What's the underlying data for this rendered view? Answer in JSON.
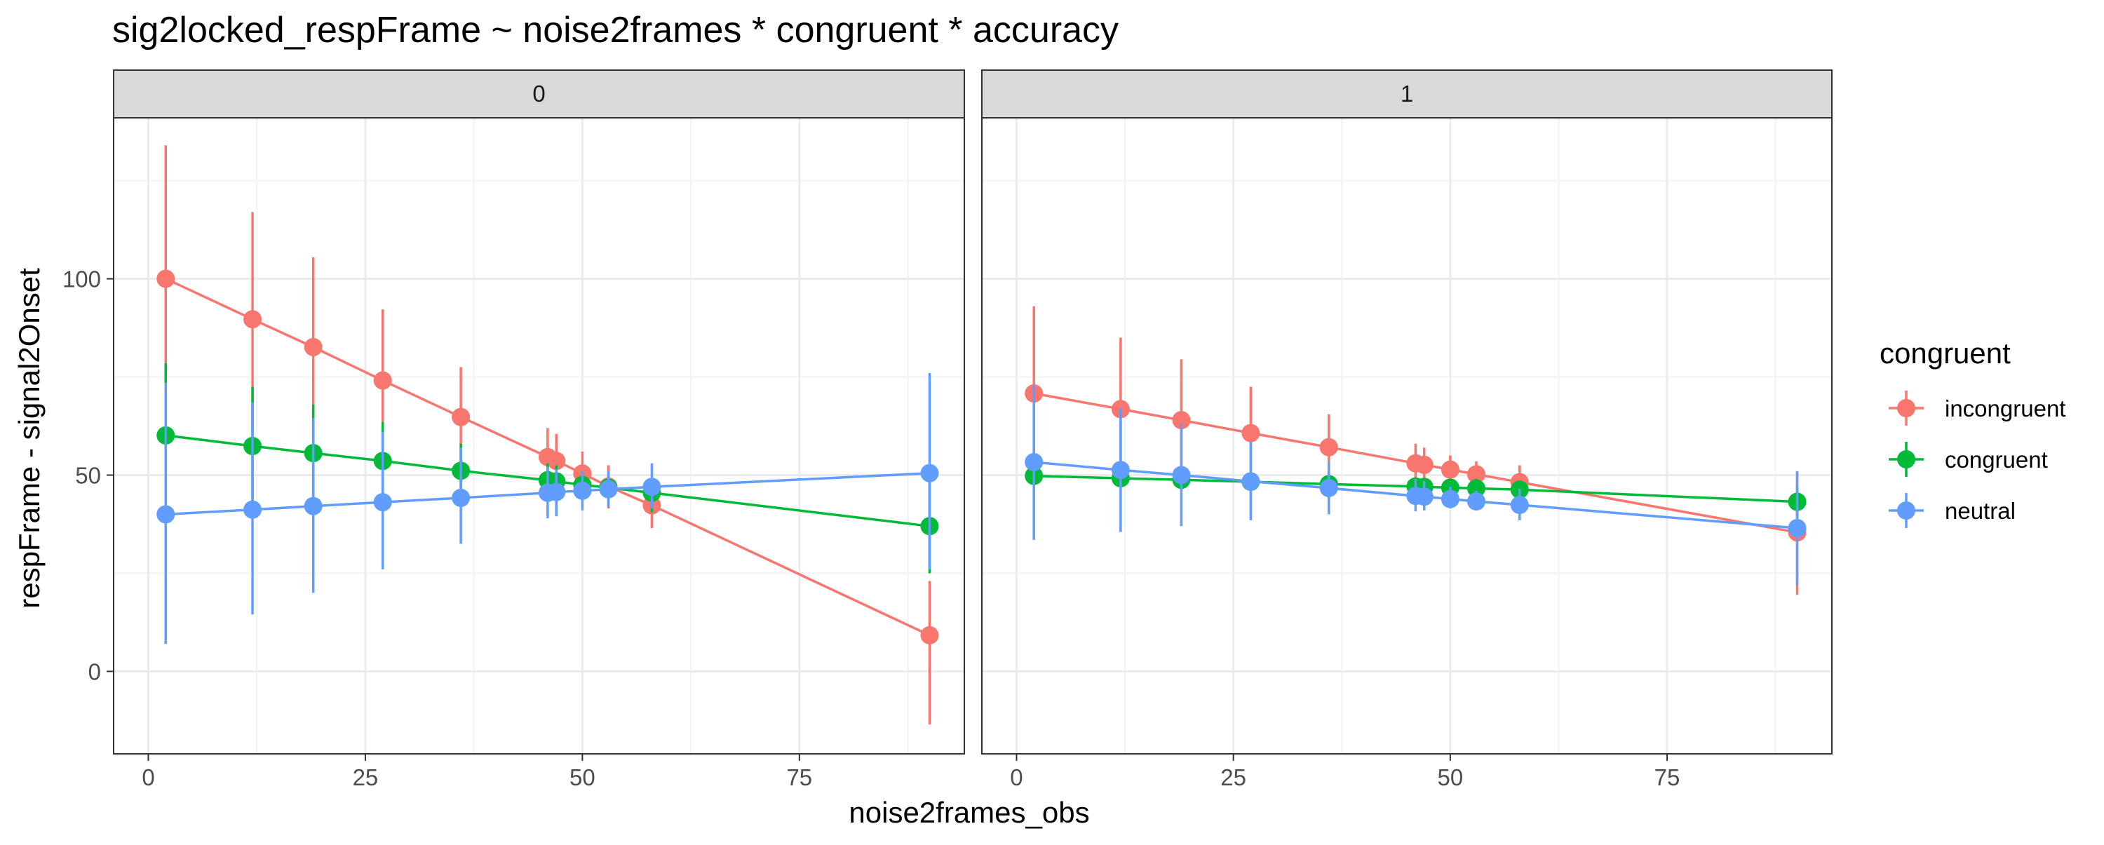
{
  "chart_data": {
    "type": "line",
    "title": "sig2locked_respFrame ~ noise2frames * congruent * accuracy",
    "xlabel": "noise2frames_obs",
    "ylabel": "respFrame - signal2Onset",
    "xlim": [
      -4,
      94
    ],
    "ylim": [
      -21,
      141
    ],
    "xticks": [
      0,
      25,
      50,
      75
    ],
    "yticks": [
      0,
      50,
      100
    ],
    "grid": true,
    "legend": {
      "title": "congruent",
      "position": "right",
      "entries": [
        "incongruent",
        "congruent",
        "neutral"
      ]
    },
    "colors": {
      "incongruent": "#f8766d",
      "congruent": "#00ba38",
      "neutral": "#619cff"
    },
    "x": [
      2,
      12,
      19,
      27,
      36,
      46,
      47,
      50,
      53,
      58,
      90
    ],
    "facets": [
      {
        "strip": "0",
        "series": [
          {
            "name": "incongruent",
            "y": [
              100,
              89.7,
              82.6,
              74.1,
              64.8,
              54.6,
              53.6,
              50.4,
              47.1,
              42.3,
              9.2
            ],
            "lower": [
              65,
              62,
              59,
              56,
              52.6,
              47,
              46.5,
              45,
              41.5,
              36.5,
              -13.5
            ],
            "upper": [
              134,
              117,
              105.5,
              92.2,
              77.5,
              62,
              60.5,
              56,
              52.5,
              48,
              23
            ]
          },
          {
            "name": "congruent",
            "y": [
              60.1,
              57.4,
              55.6,
              53.6,
              51.1,
              48.7,
              48.4,
              47.5,
              46.8,
              45.5,
              37
            ],
            "lower": [
              43,
              42,
              42,
              42.5,
              44,
              44.5,
              44.5,
              44.5,
              44,
              40.5,
              25
            ],
            "upper": [
              78.5,
              72.5,
              68,
              63.5,
              58,
              53,
              52.5,
              51,
              50,
              49,
              49.5
            ]
          },
          {
            "name": "neutral",
            "y": [
              40,
              41.2,
              42.1,
              43.1,
              44.2,
              45.5,
              45.7,
              46,
              46.4,
              47,
              50.5
            ],
            "lower": [
              7,
              14.5,
              20,
              26,
              32.5,
              39,
              39.5,
              41,
              42,
              41.5,
              26
            ],
            "upper": [
              73.5,
              68.5,
              64.5,
              61,
              57,
              52,
              51.5,
              51,
              51,
              53,
              76
            ]
          }
        ]
      },
      {
        "strip": "1",
        "series": [
          {
            "name": "incongruent",
            "y": [
              70.8,
              66.8,
              64,
              60.7,
              57.1,
              53,
              52.6,
              51.4,
              50.2,
              48.2,
              35.4
            ],
            "lower": [
              48.5,
              48.5,
              48.5,
              49,
              49,
              48.5,
              48.5,
              48,
              47.5,
              44,
              19.5
            ],
            "upper": [
              93,
              85,
              79.5,
              72.5,
              65.5,
              58,
              57,
              55,
              53.5,
              52.5,
              51
            ]
          },
          {
            "name": "congruent",
            "y": [
              49.8,
              49.2,
              48.8,
              48.3,
              47.7,
              47.1,
              47,
              46.8,
              46.6,
              46.3,
              43.2
            ],
            "lower": [
              47,
              47,
              46.8,
              46.5,
              46,
              45,
              45,
              44.5,
              44.3,
              44,
              39
            ],
            "upper": [
              52.8,
              51.5,
              51,
              50.5,
              49.5,
              49,
              49,
              49,
              49,
              48.6,
              47.5
            ]
          },
          {
            "name": "neutral",
            "y": [
              53.3,
              51.3,
              50,
              48.4,
              46.7,
              44.7,
              44.5,
              43.9,
              43.3,
              42.4,
              36.5
            ],
            "lower": [
              33.5,
              35.5,
              37,
              38.5,
              40,
              40.8,
              41,
              41.5,
              41,
              38.5,
              22
            ],
            "upper": [
              73,
              67,
              63,
              58.5,
              53.5,
              49,
              48.5,
              47,
              46,
              46.5,
              51
            ]
          }
        ]
      }
    ]
  }
}
